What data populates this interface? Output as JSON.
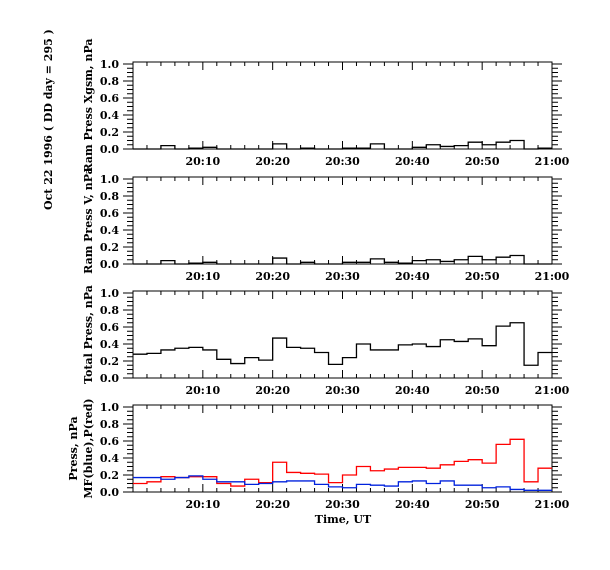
{
  "title_vertical": "Oct 22 1996   ( DD day = 295 )",
  "xlabel": "Time, UT",
  "chart_data": [
    {
      "type": "line",
      "step": true,
      "ylabel": [
        "Ram Press Xgsm, nPa"
      ],
      "ylim": [
        0,
        1.0
      ],
      "yticks": [
        "0.0",
        "0.2",
        "0.4",
        "0.6",
        "0.8",
        "1.0"
      ],
      "xticks": [
        "20:10",
        "20:20",
        "20:30",
        "20:40",
        "20:50",
        "21:00"
      ],
      "x_range_minutes": [
        0,
        60
      ],
      "bin_minutes": 2,
      "series": [
        {
          "name": "Ram Press Xgsm",
          "color": "#000000",
          "values": [
            0,
            0,
            0.04,
            0,
            0.01,
            0.02,
            0,
            0,
            0,
            0,
            0.06,
            0,
            0.01,
            0,
            0,
            0.01,
            0.01,
            0.06,
            0,
            0,
            0.02,
            0.05,
            0.03,
            0.04,
            0.08,
            0.05,
            0.08,
            0.1,
            0,
            0.01
          ]
        }
      ]
    },
    {
      "type": "line",
      "step": true,
      "ylabel": [
        "Ram Press V, nPa"
      ],
      "ylim": [
        0,
        1.0
      ],
      "yticks": [
        "0.0",
        "0.2",
        "0.4",
        "0.6",
        "0.8",
        "1.0"
      ],
      "xticks": [
        "20:10",
        "20:20",
        "20:30",
        "20:40",
        "20:50",
        "21:00"
      ],
      "x_range_minutes": [
        0,
        60
      ],
      "bin_minutes": 2,
      "series": [
        {
          "name": "Ram Press V",
          "color": "#000000",
          "values": [
            0,
            0,
            0.04,
            0,
            0.01,
            0.02,
            0,
            0,
            0,
            0,
            0.07,
            0,
            0.02,
            0,
            0,
            0.02,
            0.02,
            0.06,
            0.02,
            0.01,
            0.04,
            0.05,
            0.03,
            0.05,
            0.09,
            0.05,
            0.08,
            0.1,
            0,
            0
          ]
        }
      ]
    },
    {
      "type": "line",
      "step": true,
      "ylabel": [
        "Total Press, nPa"
      ],
      "ylim": [
        0,
        1.0
      ],
      "yticks": [
        "0.0",
        "0.2",
        "0.4",
        "0.6",
        "0.8",
        "1.0"
      ],
      "xticks": [
        "20:10",
        "20:20",
        "20:30",
        "20:40",
        "20:50",
        "21:00"
      ],
      "x_range_minutes": [
        0,
        60
      ],
      "bin_minutes": 2,
      "series": [
        {
          "name": "Total Press",
          "color": "#000000",
          "values": [
            0.28,
            0.29,
            0.33,
            0.35,
            0.36,
            0.33,
            0.22,
            0.17,
            0.24,
            0.21,
            0.47,
            0.36,
            0.35,
            0.3,
            0.16,
            0.24,
            0.4,
            0.33,
            0.33,
            0.39,
            0.4,
            0.37,
            0.45,
            0.43,
            0.46,
            0.38,
            0.61,
            0.65,
            0.15,
            0.3
          ]
        }
      ]
    },
    {
      "type": "line",
      "step": true,
      "ylabel": [
        "Press, nPa",
        "MF(blue),P(red)"
      ],
      "ylim": [
        0,
        1.0
      ],
      "yticks": [
        "0.0",
        "0.2",
        "0.4",
        "0.6",
        "0.8",
        "1.0"
      ],
      "xticks": [
        "20:10",
        "20:20",
        "20:30",
        "20:40",
        "20:50",
        "21:00"
      ],
      "x_range_minutes": [
        0,
        60
      ],
      "bin_minutes": 2,
      "series": [
        {
          "name": "P (red)",
          "color": "#ff0000",
          "values": [
            0.1,
            0.12,
            0.18,
            0.17,
            0.18,
            0.18,
            0.1,
            0.07,
            0.15,
            0.11,
            0.35,
            0.23,
            0.22,
            0.21,
            0.11,
            0.2,
            0.3,
            0.25,
            0.27,
            0.29,
            0.29,
            0.28,
            0.32,
            0.36,
            0.38,
            0.34,
            0.56,
            0.62,
            0.12,
            0.28
          ]
        },
        {
          "name": "MF (blue)",
          "color": "#0022dd",
          "values": [
            0.17,
            0.17,
            0.15,
            0.17,
            0.19,
            0.15,
            0.12,
            0.12,
            0.09,
            0.1,
            0.12,
            0.13,
            0.13,
            0.09,
            0.06,
            0.05,
            0.09,
            0.08,
            0.07,
            0.12,
            0.13,
            0.1,
            0.13,
            0.08,
            0.08,
            0.05,
            0.06,
            0.03,
            0.02,
            0.02
          ]
        }
      ]
    }
  ]
}
